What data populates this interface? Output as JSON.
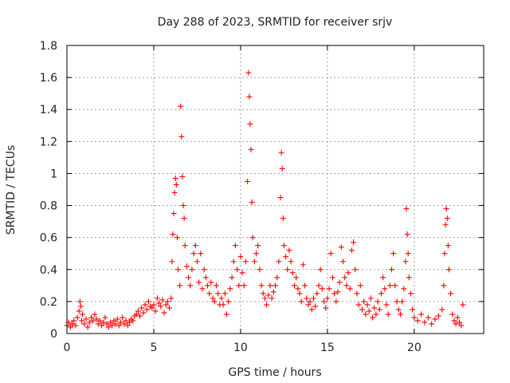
{
  "chart_data": {
    "type": "scatter",
    "title": "Day 288 of 2023, SRMTID for receiver srjv",
    "xlabel": "GPS time / hours",
    "ylabel": "SRMTID / TECUs",
    "xlim": [
      0,
      24
    ],
    "ylim": [
      0,
      1.8
    ],
    "xticks": [
      "0",
      "5",
      "10",
      "15",
      "20"
    ],
    "yticks": [
      "0",
      "0.2",
      "0.4",
      "0.6",
      "0.8",
      "1",
      "1.2",
      "1.4",
      "1.6",
      "1.8"
    ],
    "marker": "+",
    "color": "#ff0000",
    "grid": true,
    "series": [
      {
        "name": "SRMTID",
        "points": [
          [
            0.0,
            0.05
          ],
          [
            0.1,
            0.07
          ],
          [
            0.2,
            0.04
          ],
          [
            0.3,
            0.06
          ],
          [
            0.4,
            0.08
          ],
          [
            0.5,
            0.05
          ],
          [
            0.6,
            0.1
          ],
          [
            0.7,
            0.14
          ],
          [
            0.75,
            0.2
          ],
          [
            0.8,
            0.17
          ],
          [
            0.85,
            0.08
          ],
          [
            0.9,
            0.12
          ],
          [
            1.0,
            0.06
          ],
          [
            1.1,
            0.09
          ],
          [
            1.2,
            0.04
          ],
          [
            1.3,
            0.07
          ],
          [
            1.4,
            0.1
          ],
          [
            1.5,
            0.08
          ],
          [
            1.6,
            0.12
          ],
          [
            1.7,
            0.09
          ],
          [
            1.8,
            0.06
          ],
          [
            1.9,
            0.08
          ],
          [
            2.0,
            0.05
          ],
          [
            2.1,
            0.07
          ],
          [
            2.2,
            0.1
          ],
          [
            2.3,
            0.06
          ],
          [
            2.4,
            0.04
          ],
          [
            2.5,
            0.07
          ],
          [
            2.6,
            0.05
          ],
          [
            2.7,
            0.08
          ],
          [
            2.8,
            0.06
          ],
          [
            2.9,
            0.09
          ],
          [
            3.0,
            0.05
          ],
          [
            3.1,
            0.07
          ],
          [
            3.2,
            0.1
          ],
          [
            3.3,
            0.06
          ],
          [
            3.4,
            0.08
          ],
          [
            3.5,
            0.05
          ],
          [
            3.6,
            0.07
          ],
          [
            3.7,
            0.09
          ],
          [
            3.8,
            0.08
          ],
          [
            3.9,
            0.11
          ],
          [
            4.0,
            0.12
          ],
          [
            4.1,
            0.14
          ],
          [
            4.2,
            0.11
          ],
          [
            4.3,
            0.16
          ],
          [
            4.4,
            0.13
          ],
          [
            4.5,
            0.18
          ],
          [
            4.6,
            0.15
          ],
          [
            4.7,
            0.2
          ],
          [
            4.8,
            0.17
          ],
          [
            4.9,
            0.16
          ],
          [
            5.0,
            0.18
          ],
          [
            5.1,
            0.14
          ],
          [
            5.2,
            0.22
          ],
          [
            5.3,
            0.19
          ],
          [
            5.4,
            0.17
          ],
          [
            5.5,
            0.21
          ],
          [
            5.6,
            0.13
          ],
          [
            5.7,
            0.18
          ],
          [
            5.8,
            0.2
          ],
          [
            5.9,
            0.16
          ],
          [
            6.0,
            0.22
          ],
          [
            6.05,
            0.45
          ],
          [
            6.1,
            0.62
          ],
          [
            6.15,
            0.75
          ],
          [
            6.2,
            0.88
          ],
          [
            6.25,
            0.97
          ],
          [
            6.3,
            0.93
          ],
          [
            6.35,
            0.6
          ],
          [
            6.4,
            0.4
          ],
          [
            6.5,
            0.3
          ],
          [
            6.55,
            1.42
          ],
          [
            6.6,
            1.23
          ],
          [
            6.65,
            0.98
          ],
          [
            6.7,
            0.8
          ],
          [
            6.75,
            0.72
          ],
          [
            6.8,
            0.55
          ],
          [
            6.9,
            0.42
          ],
          [
            7.0,
            0.35
          ],
          [
            7.1,
            0.3
          ],
          [
            7.2,
            0.4
          ],
          [
            7.3,
            0.5
          ],
          [
            7.4,
            0.55
          ],
          [
            7.5,
            0.45
          ],
          [
            7.6,
            0.32
          ],
          [
            7.7,
            0.5
          ],
          [
            7.8,
            0.28
          ],
          [
            7.9,
            0.4
          ],
          [
            8.0,
            0.35
          ],
          [
            8.1,
            0.3
          ],
          [
            8.2,
            0.25
          ],
          [
            8.3,
            0.32
          ],
          [
            8.4,
            0.22
          ],
          [
            8.5,
            0.2
          ],
          [
            8.6,
            0.3
          ],
          [
            8.7,
            0.25
          ],
          [
            8.8,
            0.18
          ],
          [
            8.9,
            0.22
          ],
          [
            9.0,
            0.18
          ],
          [
            9.1,
            0.25
          ],
          [
            9.2,
            0.12
          ],
          [
            9.3,
            0.2
          ],
          [
            9.4,
            0.28
          ],
          [
            9.5,
            0.35
          ],
          [
            9.6,
            0.45
          ],
          [
            9.7,
            0.55
          ],
          [
            9.8,
            0.4
          ],
          [
            9.9,
            0.3
          ],
          [
            10.0,
            0.48
          ],
          [
            10.1,
            0.38
          ],
          [
            10.2,
            0.3
          ],
          [
            10.3,
            0.45
          ],
          [
            10.4,
            0.95
          ],
          [
            10.45,
            1.63
          ],
          [
            10.5,
            1.48
          ],
          [
            10.55,
            1.31
          ],
          [
            10.6,
            1.15
          ],
          [
            10.65,
            0.82
          ],
          [
            10.7,
            0.6
          ],
          [
            10.8,
            0.45
          ],
          [
            10.9,
            0.5
          ],
          [
            11.0,
            0.55
          ],
          [
            11.1,
            0.4
          ],
          [
            11.2,
            0.3
          ],
          [
            11.3,
            0.25
          ],
          [
            11.4,
            0.22
          ],
          [
            11.5,
            0.18
          ],
          [
            11.6,
            0.24
          ],
          [
            11.7,
            0.3
          ],
          [
            11.8,
            0.22
          ],
          [
            11.9,
            0.26
          ],
          [
            12.0,
            0.3
          ],
          [
            12.1,
            0.35
          ],
          [
            12.2,
            0.45
          ],
          [
            12.3,
            0.85
          ],
          [
            12.35,
            1.13
          ],
          [
            12.4,
            1.03
          ],
          [
            12.45,
            0.72
          ],
          [
            12.5,
            0.55
          ],
          [
            12.6,
            0.48
          ],
          [
            12.7,
            0.4
          ],
          [
            12.8,
            0.52
          ],
          [
            12.9,
            0.45
          ],
          [
            13.0,
            0.38
          ],
          [
            13.1,
            0.3
          ],
          [
            13.2,
            0.35
          ],
          [
            13.3,
            0.28
          ],
          [
            13.4,
            0.25
          ],
          [
            13.5,
            0.2
          ],
          [
            13.6,
            0.43
          ],
          [
            13.7,
            0.3
          ],
          [
            13.8,
            0.22
          ],
          [
            13.9,
            0.18
          ],
          [
            14.0,
            0.2
          ],
          [
            14.1,
            0.15
          ],
          [
            14.2,
            0.22
          ],
          [
            14.3,
            0.17
          ],
          [
            14.4,
            0.25
          ],
          [
            14.5,
            0.3
          ],
          [
            14.6,
            0.4
          ],
          [
            14.7,
            0.28
          ],
          [
            14.8,
            0.2
          ],
          [
            14.9,
            0.16
          ],
          [
            15.0,
            0.22
          ],
          [
            15.1,
            0.28
          ],
          [
            15.2,
            0.5
          ],
          [
            15.3,
            0.35
          ],
          [
            15.4,
            0.25
          ],
          [
            15.5,
            0.2
          ],
          [
            15.6,
            0.26
          ],
          [
            15.7,
            0.32
          ],
          [
            15.8,
            0.54
          ],
          [
            15.9,
            0.45
          ],
          [
            16.0,
            0.35
          ],
          [
            16.1,
            0.3
          ],
          [
            16.2,
            0.38
          ],
          [
            16.3,
            0.28
          ],
          [
            16.4,
            0.52
          ],
          [
            16.5,
            0.57
          ],
          [
            16.6,
            0.4
          ],
          [
            16.7,
            0.25
          ],
          [
            16.8,
            0.18
          ],
          [
            16.9,
            0.3
          ],
          [
            17.0,
            0.15
          ],
          [
            17.1,
            0.2
          ],
          [
            17.2,
            0.12
          ],
          [
            17.3,
            0.18
          ],
          [
            17.4,
            0.14
          ],
          [
            17.5,
            0.22
          ],
          [
            17.6,
            0.1
          ],
          [
            17.7,
            0.16
          ],
          [
            17.8,
            0.12
          ],
          [
            17.9,
            0.2
          ],
          [
            18.0,
            0.15
          ],
          [
            18.1,
            0.25
          ],
          [
            18.2,
            0.35
          ],
          [
            18.3,
            0.28
          ],
          [
            18.4,
            0.18
          ],
          [
            18.5,
            0.12
          ],
          [
            18.6,
            0.3
          ],
          [
            18.7,
            0.4
          ],
          [
            18.8,
            0.5
          ],
          [
            18.9,
            0.3
          ],
          [
            19.0,
            0.2
          ],
          [
            19.1,
            0.15
          ],
          [
            19.2,
            0.12
          ],
          [
            19.3,
            0.2
          ],
          [
            19.4,
            0.28
          ],
          [
            19.5,
            0.45
          ],
          [
            19.55,
            0.78
          ],
          [
            19.6,
            0.62
          ],
          [
            19.65,
            0.5
          ],
          [
            19.7,
            0.35
          ],
          [
            19.8,
            0.25
          ],
          [
            19.9,
            0.15
          ],
          [
            20.0,
            0.1
          ],
          [
            20.2,
            0.08
          ],
          [
            20.4,
            0.12
          ],
          [
            20.6,
            0.07
          ],
          [
            20.8,
            0.1
          ],
          [
            21.0,
            0.06
          ],
          [
            21.2,
            0.09
          ],
          [
            21.4,
            0.11
          ],
          [
            21.6,
            0.15
          ],
          [
            21.7,
            0.3
          ],
          [
            21.75,
            0.5
          ],
          [
            21.8,
            0.68
          ],
          [
            21.85,
            0.78
          ],
          [
            21.9,
            0.72
          ],
          [
            21.95,
            0.55
          ],
          [
            22.0,
            0.4
          ],
          [
            22.1,
            0.25
          ],
          [
            22.2,
            0.12
          ],
          [
            22.3,
            0.08
          ],
          [
            22.4,
            0.06
          ],
          [
            22.5,
            0.1
          ],
          [
            22.6,
            0.07
          ],
          [
            22.7,
            0.05
          ],
          [
            22.8,
            0.18
          ]
        ]
      }
    ]
  }
}
